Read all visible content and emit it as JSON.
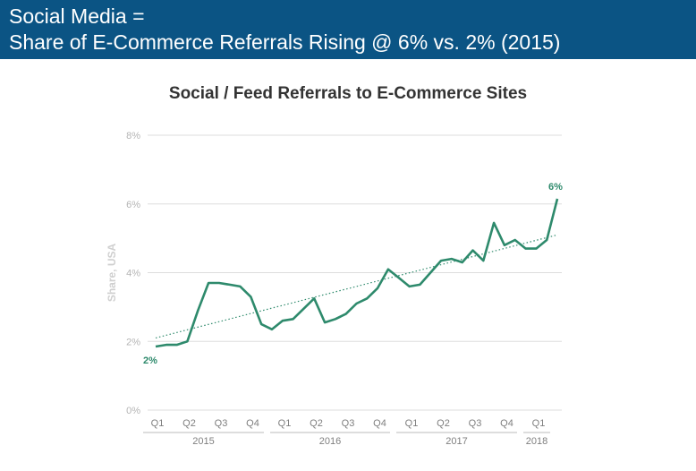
{
  "header": {
    "line1": "Social Media =",
    "line2": "Share of E-Commerce Referrals Rising @ 6% vs. 2% (2015)"
  },
  "colors": {
    "header_bg": "#0b5484",
    "series": "#2e8a6c",
    "grid": "#dddddd"
  },
  "chart_data": {
    "type": "line",
    "title": "Social / Feed Referrals to E-Commerce Sites",
    "ylabel": "Share, USA",
    "xlabel": "",
    "ylim": [
      0,
      8
    ],
    "yticks": [
      "0%",
      "2%",
      "4%",
      "6%",
      "8%"
    ],
    "grid": true,
    "quarters": [
      "Q1",
      "Q2",
      "Q3",
      "Q4",
      "Q1",
      "Q2",
      "Q3",
      "Q4",
      "Q1",
      "Q2",
      "Q3",
      "Q4",
      "Q1"
    ],
    "years": [
      "2015",
      "2016",
      "2017",
      "2018"
    ],
    "series": [
      {
        "values": [
          1.85,
          1.9,
          1.9,
          2.0,
          2.9,
          3.7,
          3.7,
          3.65,
          3.6,
          3.3,
          2.5,
          2.35,
          2.6,
          2.65,
          2.95,
          3.25,
          2.55,
          2.65,
          2.8,
          3.1,
          3.25,
          3.55,
          4.1,
          3.85,
          3.6,
          3.65,
          4.0,
          4.35,
          4.4,
          4.3,
          4.65,
          4.35,
          5.45,
          4.8,
          4.95,
          4.7,
          4.7,
          4.95,
          6.15
        ]
      }
    ],
    "trendline": {
      "start": 2.1,
      "end": 5.1
    },
    "annotations": [
      {
        "text": "2%",
        "point": "first"
      },
      {
        "text": "6%",
        "point": "last"
      }
    ]
  }
}
